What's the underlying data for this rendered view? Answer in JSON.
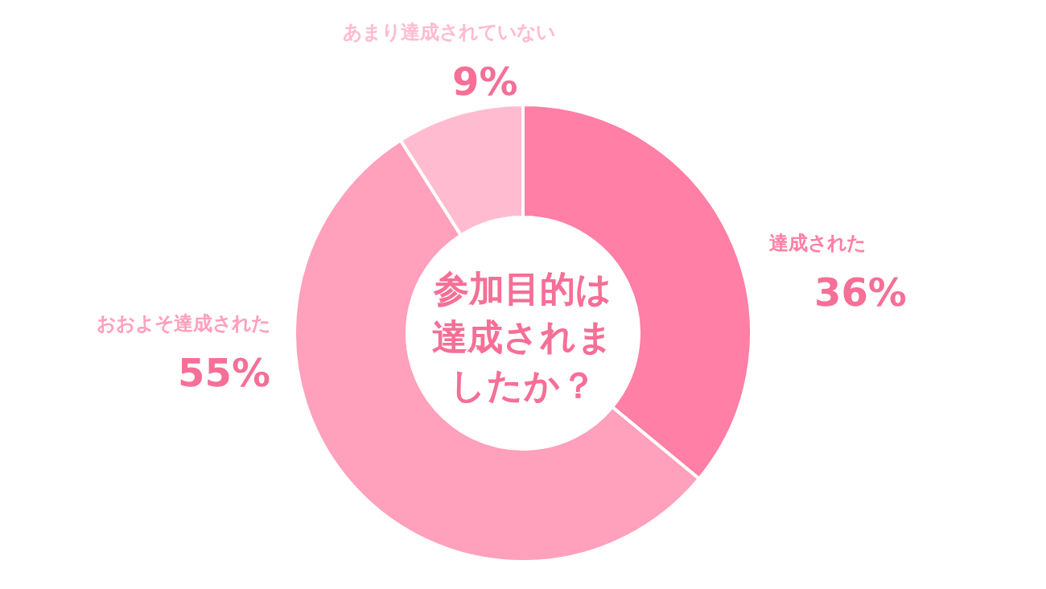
{
  "chart_data": {
    "type": "donut",
    "title": "参加目的は達成されましたか？",
    "categories": [
      "達成された",
      "おおよそ達成された",
      "あまり達成されていない"
    ],
    "values": [
      36,
      55,
      9
    ],
    "colors": [
      "#ff7fa6",
      "#ffa0bc",
      "#ffbcd1"
    ],
    "value_labels": [
      "36%",
      "55%",
      "9%"
    ]
  }
}
